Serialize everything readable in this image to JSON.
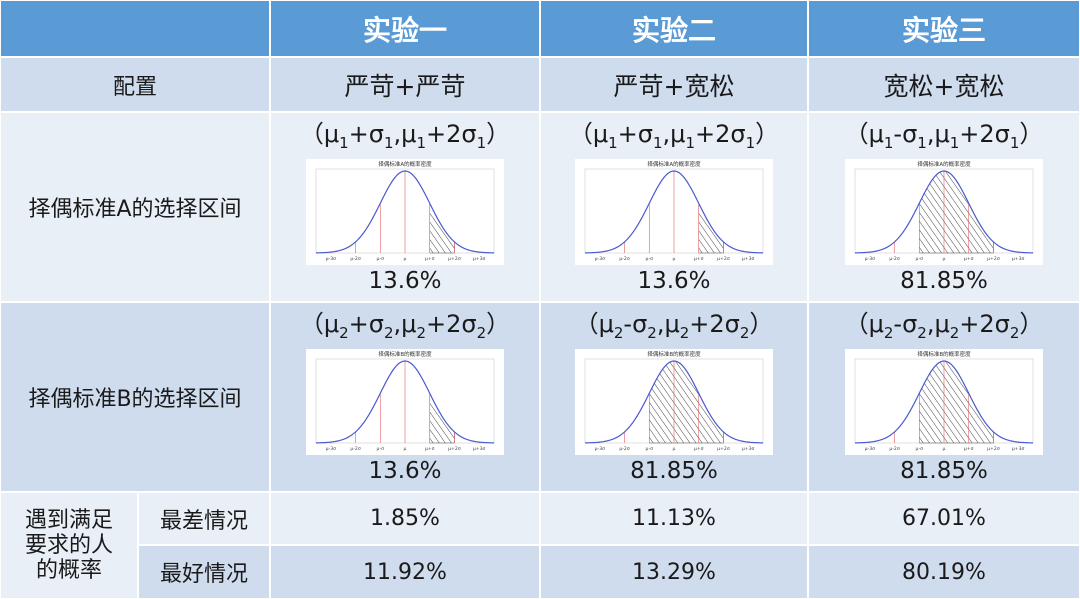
{
  "header": {
    "col1": "实验一",
    "col2": "实验二",
    "col3": "实验三"
  },
  "config": {
    "label": "配置",
    "col1": "严苛+严苛",
    "col2": "严苛+宽松",
    "col3": "宽松+宽松"
  },
  "criteria_a": {
    "label": "择偶标准A的选择区间",
    "plot_title": "择偶标准A的概率密度",
    "cols": [
      {
        "open": "（μ",
        "s1": "1",
        "op1": "+σ",
        "s2": "1",
        "mid": ",μ",
        "s3": "1",
        "op2": "+2σ",
        "s4": "1",
        "close": "）",
        "percent": "13.6%",
        "shade_from": 1,
        "shade_to": 2
      },
      {
        "open": "（μ",
        "s1": "1",
        "op1": "+σ",
        "s2": "1",
        "mid": ",μ",
        "s3": "1",
        "op2": "+2σ",
        "s4": "1",
        "close": "）",
        "percent": "13.6%",
        "shade_from": 1,
        "shade_to": 2
      },
      {
        "open": "（μ",
        "s1": "1",
        "op1": "-σ",
        "s2": "1",
        "mid": ",μ",
        "s3": "1",
        "op2": "+2σ",
        "s4": "1",
        "close": "）",
        "percent": "81.85%",
        "shade_from": -1,
        "shade_to": 2
      }
    ]
  },
  "criteria_b": {
    "label": "择偶标准B的选择区间",
    "plot_title": "择偶标准B的概率密度",
    "cols": [
      {
        "open": "（μ",
        "s1": "2",
        "op1": "+σ",
        "s2": "2",
        "mid": ",μ",
        "s3": "2",
        "op2": "+2σ",
        "s4": "2",
        "close": "）",
        "percent": "13.6%",
        "shade_from": 1,
        "shade_to": 2
      },
      {
        "open": "（μ",
        "s1": "2",
        "op1": "-σ",
        "s2": "2",
        "mid": ",μ",
        "s3": "2",
        "op2": "+2σ",
        "s4": "2",
        "close": "）",
        "percent": "81.85%",
        "shade_from": -1,
        "shade_to": 2
      },
      {
        "open": "（μ",
        "s1": "2",
        "op1": "-σ",
        "s2": "2",
        "mid": ",μ",
        "s3": "2",
        "op2": "+2σ",
        "s4": "2",
        "close": "）",
        "percent": "81.85%",
        "shade_from": -1,
        "shade_to": 2
      }
    ]
  },
  "axis_ticks": [
    "μ-3σ",
    "μ-2σ",
    "μ-σ",
    "μ",
    "μ+σ",
    "μ+2σ",
    "μ+3σ"
  ],
  "probability": {
    "label_line1": "遇到满足",
    "label_line2": "要求的人",
    "label_line3": "的概率",
    "worst": {
      "label": "最差情况",
      "col1": "1.85%",
      "col2": "11.13%",
      "col3": "67.01%"
    },
    "best": {
      "label": "最好情况",
      "col1": "11.92%",
      "col2": "13.29%",
      "col3": "80.19%"
    }
  },
  "colors": {
    "header_bg": "#5b9bd5",
    "row_dark": "#cfdcee",
    "row_light": "#e9eff7",
    "curve": "#4a5ad0",
    "marker": "#e06060"
  }
}
